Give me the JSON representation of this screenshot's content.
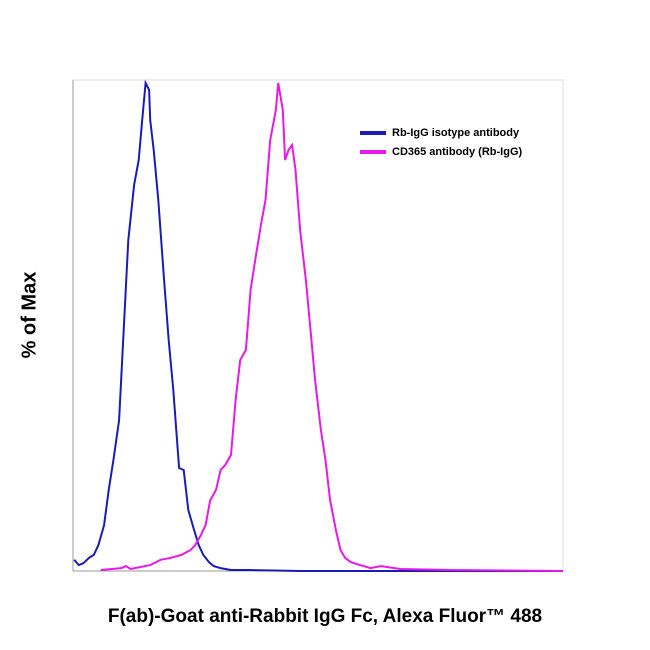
{
  "chart_data": {
    "type": "line",
    "y_label": "% of Max",
    "x_label": "F(ab)-Goat anti-Rabbit IgG Fc, Alexa Fluor™ 488",
    "xlim": [
      0.7,
      4.95
    ],
    "ylim": [
      0,
      100
    ],
    "log_x_decades": true,
    "legend": "upper right",
    "series": [
      {
        "name": "Rb-IgG isotype antibody",
        "color": "#1c1cb4",
        "x": [
          0.71,
          0.75,
          0.79,
          0.84,
          0.88,
          0.92,
          0.97,
          1.01,
          1.05,
          1.1,
          1.14,
          1.18,
          1.23,
          1.27,
          1.3,
          1.33,
          1.36,
          1.37,
          1.4,
          1.44,
          1.49,
          1.53,
          1.57,
          1.62,
          1.66,
          1.7,
          1.75,
          1.79,
          1.83,
          1.88,
          1.92,
          1.98,
          2.07,
          2.24,
          2.67,
          3.54,
          4.95
        ],
        "values": [
          2.3,
          1.2,
          1.6,
          2.7,
          3.3,
          5.3,
          9.4,
          16.6,
          22.7,
          30.9,
          49.4,
          67.8,
          79.1,
          84.2,
          92.4,
          100,
          98.6,
          92.4,
          86.3,
          76.0,
          59.6,
          47.3,
          37.1,
          21.1,
          20.7,
          12.5,
          8.4,
          5.3,
          3.3,
          1.8,
          1.0,
          0.6,
          0.2,
          0.2,
          0,
          0,
          0
        ]
      },
      {
        "name": "CD365 antibody (Rb-IgG)",
        "color": "#e619e6",
        "x": [
          0.94,
          1.12,
          1.16,
          1.2,
          1.37,
          1.46,
          1.55,
          1.64,
          1.72,
          1.76,
          1.81,
          1.85,
          1.89,
          1.94,
          1.98,
          2.02,
          2.07,
          2.11,
          2.15,
          2.2,
          2.24,
          2.28,
          2.33,
          2.37,
          2.41,
          2.46,
          2.48,
          2.52,
          2.54,
          2.57,
          2.6,
          2.63,
          2.67,
          2.72,
          2.76,
          2.8,
          2.85,
          2.89,
          2.93,
          2.98,
          3.02,
          3.06,
          3.11,
          3.19,
          3.28,
          3.37,
          3.54,
          3.97,
          4.95
        ],
        "values": [
          0.2,
          0.6,
          1.0,
          0.4,
          1.2,
          2.3,
          2.7,
          3.3,
          4.3,
          5.3,
          7.4,
          9.4,
          14.5,
          16.6,
          20.7,
          21.7,
          23.8,
          35.0,
          43.2,
          45.3,
          57.6,
          63.7,
          70.9,
          76.0,
          88.3,
          94.5,
          100,
          94.5,
          84.2,
          86.3,
          87.3,
          82.2,
          69.9,
          59.6,
          49.4,
          39.1,
          28.9,
          22.7,
          14.5,
          8.4,
          4.3,
          2.7,
          1.8,
          1.2,
          0.6,
          1.0,
          0.4,
          0.2,
          0
        ]
      }
    ]
  }
}
